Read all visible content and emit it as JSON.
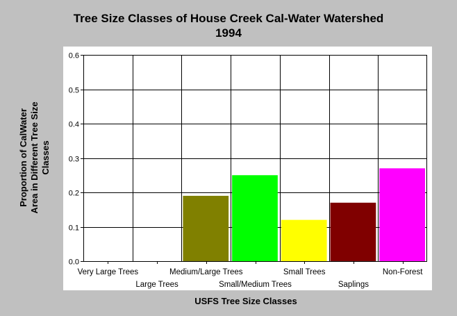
{
  "chart_data": {
    "type": "bar",
    "title": "Tree Size Classes of House Creek Cal-Water Watershed",
    "subtitle": "1994",
    "xlabel": "USFS Tree Size Classes",
    "ylabel_lines": [
      "Proportion of CalWater",
      "Area in Different Tree Size",
      "Classes"
    ],
    "categories": [
      "Very Large Trees",
      "Large Trees",
      "Medium/Large Trees",
      "Small/Medium Trees",
      "Small Trees",
      "Saplings",
      "Non-Forest"
    ],
    "values": [
      0,
      0,
      0.19,
      0.25,
      0.12,
      0.17,
      0.27
    ],
    "bar_colors": [
      "#808080",
      "#808080",
      "#808000",
      "#00ff00",
      "#ffff00",
      "#800000",
      "#ff00ff"
    ],
    "ylim": [
      0,
      0.6
    ],
    "yticks": [
      "0.0",
      "0.1",
      "0.2",
      "0.3",
      "0.4",
      "0.5",
      "0.6"
    ],
    "grid": true,
    "legend": "none",
    "colors": {
      "background": "#c0c0c0",
      "plot_panel": "#ffffff",
      "grid": "#000000"
    }
  }
}
